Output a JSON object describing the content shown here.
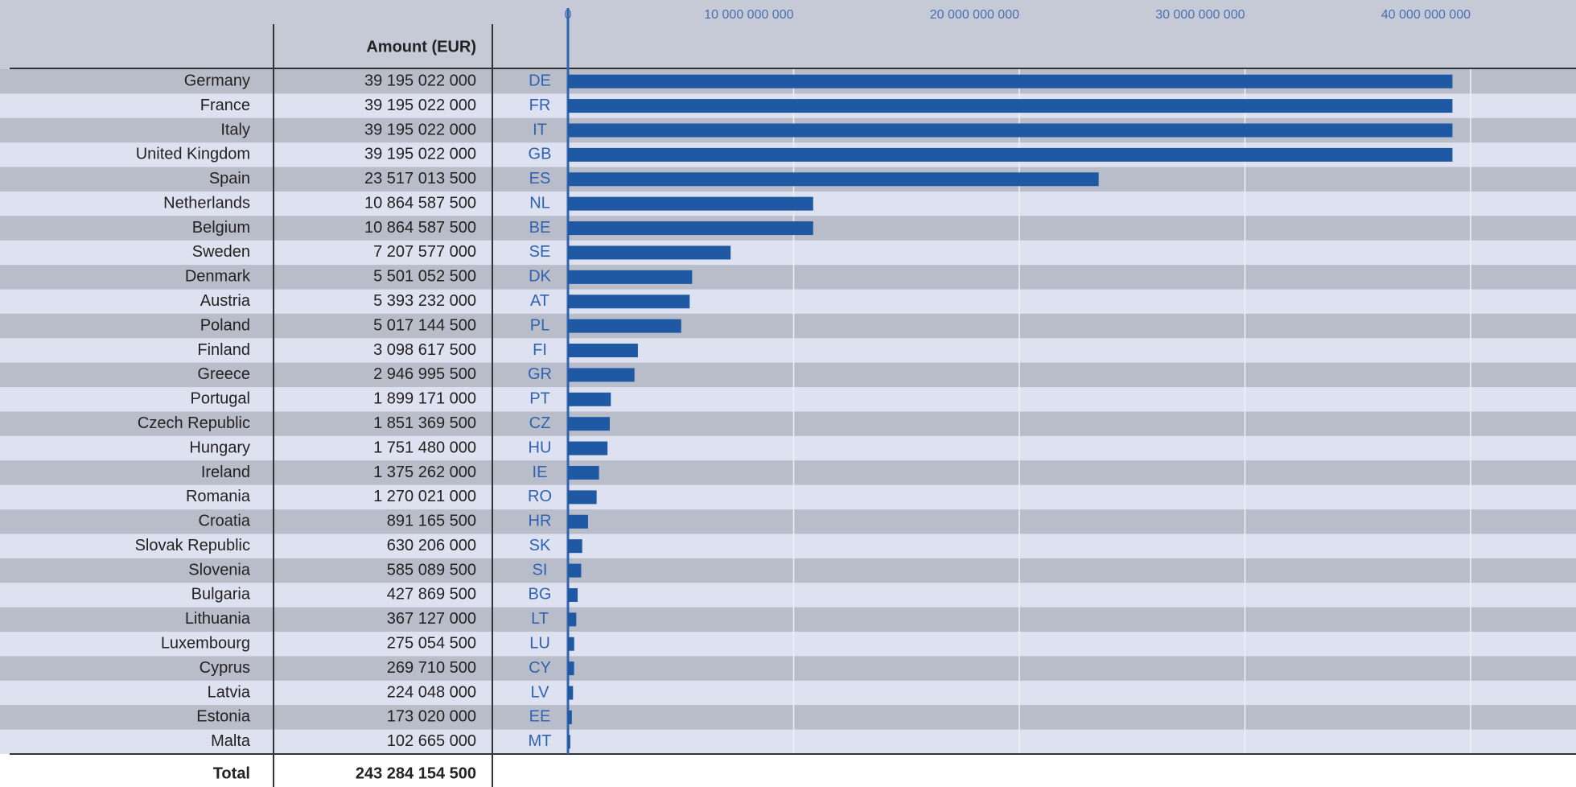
{
  "chart_data": {
    "type": "bar",
    "orientation": "horizontal",
    "column_header": "Amount (EUR)",
    "countries": [
      "Germany",
      "France",
      "Italy",
      "United Kingdom",
      "Spain",
      "Netherlands",
      "Belgium",
      "Sweden",
      "Denmark",
      "Austria",
      "Poland",
      "Finland",
      "Greece",
      "Portugal",
      "Czech Republic",
      "Hungary",
      "Ireland",
      "Romania",
      "Croatia",
      "Slovak Republic",
      "Slovenia",
      "Bulgaria",
      "Lithuania",
      "Luxembourg",
      "Cyprus",
      "Latvia",
      "Estonia",
      "Malta"
    ],
    "categories": [
      "DE",
      "FR",
      "IT",
      "GB",
      "ES",
      "NL",
      "BE",
      "SE",
      "DK",
      "AT",
      "PL",
      "FI",
      "GR",
      "PT",
      "CZ",
      "HU",
      "IE",
      "RO",
      "HR",
      "SK",
      "SI",
      "BG",
      "LT",
      "LU",
      "CY",
      "LV",
      "EE",
      "MT"
    ],
    "values": [
      39195022000,
      39195022000,
      39195022000,
      39195022000,
      23517013500,
      10864587500,
      10864587500,
      7207577000,
      5501052500,
      5393232000,
      5017144500,
      3098617500,
      2946995500,
      1899171000,
      1851369500,
      1751480000,
      1375262000,
      1270021000,
      891165500,
      630206000,
      585089500,
      427869500,
      367127000,
      275054500,
      269710500,
      224048000,
      173020000,
      102665000
    ],
    "value_labels": [
      "39 195 022 000",
      "39 195 022 000",
      "39 195 022 000",
      "39 195 022 000",
      "23 517 013 500",
      "10 864 587 500",
      "10 864 587 500",
      "7 207 577 000",
      "5 501 052 500",
      "5 393 232 000",
      "5 017 144 500",
      "3 098 617 500",
      "2 946 995 500",
      "1 899 171 000",
      "1 851 369 500",
      "1 751 480 000",
      "1 375 262 000",
      "1 270 021 000",
      "891 165 500",
      "630 206 000",
      "585 089 500",
      "427 869 500",
      "367 127 000",
      "275 054 500",
      "269 710 500",
      "224 048 000",
      "173 020 000",
      "102 665 000"
    ],
    "total_label": "Total",
    "total_amount": "243 284 154 500",
    "color": "#1f58a3",
    "xlim": [
      0,
      44670000000
    ],
    "xticks": [
      0,
      {
        "value": 10000000000,
        "label": "10 000 000 000"
      },
      {
        "value": 20000000000,
        "label": "20 000 000 000"
      },
      {
        "value": 30000000000,
        "label": "30 000 000 000"
      },
      {
        "value": 40000000000,
        "label": "40 000 000 000"
      }
    ],
    "grid": true
  }
}
